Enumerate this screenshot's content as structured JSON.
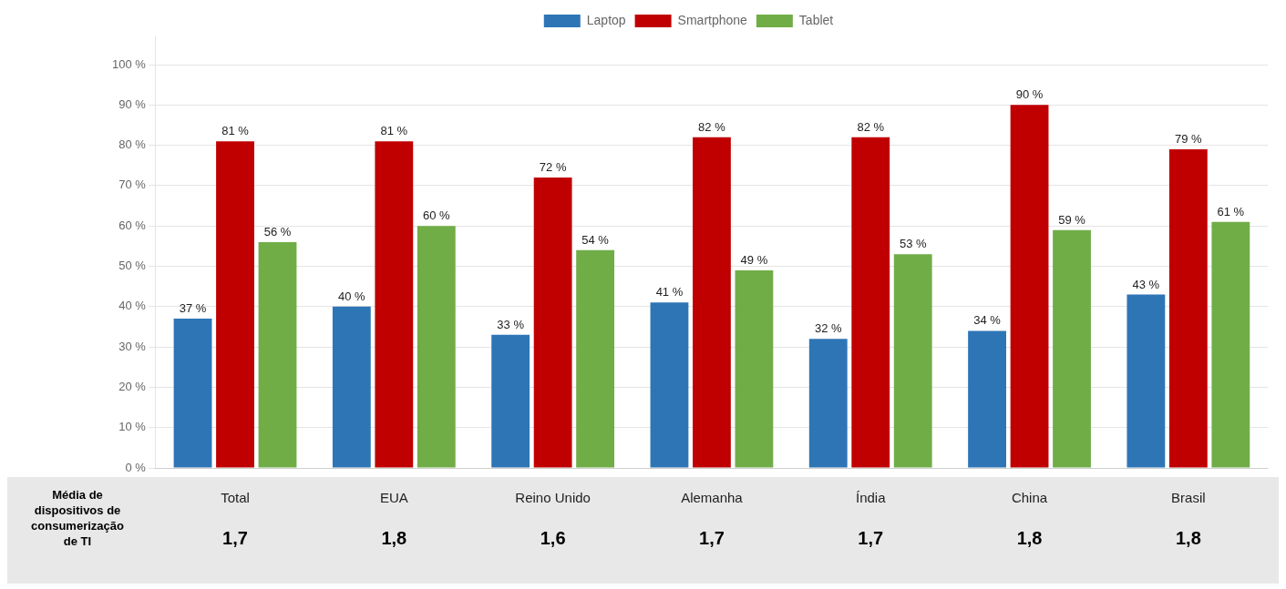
{
  "chart_data": {
    "type": "bar",
    "categories": [
      "Total",
      "EUA",
      "Reino Unido",
      "Alemanha",
      "Índia",
      "China",
      "Brasil"
    ],
    "series": [
      {
        "name": "Laptop",
        "color": "#2E75B6",
        "values": [
          37,
          40,
          33,
          41,
          32,
          34,
          43
        ],
        "value_labels": [
          "37 %",
          "40 %",
          "33 %",
          "41 %",
          "32 %",
          "34 %",
          "43 %"
        ]
      },
      {
        "name": "Smartphone",
        "color": "#C00000",
        "values": [
          81,
          81,
          72,
          82,
          82,
          90,
          79
        ],
        "value_labels": [
          "81 %",
          "81 %",
          "72 %",
          "82 %",
          "82 %",
          "90 %",
          "79 %"
        ]
      },
      {
        "name": "Tablet",
        "color": "#70AD47",
        "values": [
          56,
          60,
          54,
          49,
          53,
          59,
          61
        ],
        "value_labels": [
          "56 %",
          "60 %",
          "54 %",
          "49 %",
          "53 %",
          "59 %",
          "61 %"
        ]
      }
    ],
    "ylim": [
      0,
      107
    ],
    "yticks": [
      {
        "value": 0,
        "label": "0 %"
      },
      {
        "value": 10,
        "label": "10 %"
      },
      {
        "value": 20,
        "label": "20 %"
      },
      {
        "value": 30,
        "label": "30 %"
      },
      {
        "value": 40,
        "label": "40 %"
      },
      {
        "value": 50,
        "label": "50 %"
      },
      {
        "value": 60,
        "label": "60 %"
      },
      {
        "value": 70,
        "label": "70 %"
      },
      {
        "value": 80,
        "label": "80 %"
      },
      {
        "value": 90,
        "label": "90 %"
      },
      {
        "value": 100,
        "label": "100 %"
      }
    ],
    "grid": true,
    "legend": "top",
    "data_labels": true,
    "averages": {
      "label": "Média de\ndispositivos de\nconsumerização\nde TI",
      "values": [
        1.7,
        1.8,
        1.6,
        1.7,
        1.7,
        1.8,
        1.8
      ],
      "value_labels": [
        "1,7",
        "1,8",
        "1,6",
        "1,7",
        "1,7",
        "1,8",
        "1,8"
      ]
    }
  }
}
